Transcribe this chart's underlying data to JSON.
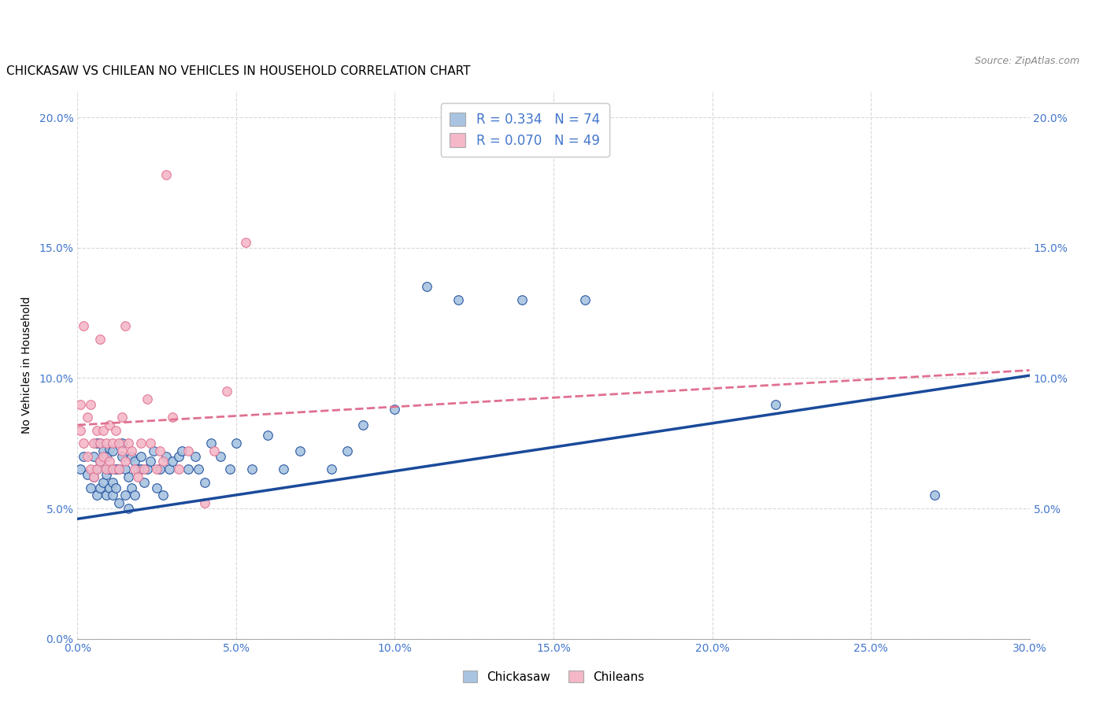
{
  "title": "CHICKASAW VS CHILEAN NO VEHICLES IN HOUSEHOLD CORRELATION CHART",
  "source": "Source: ZipAtlas.com",
  "ylabel": "No Vehicles in Household",
  "x_min": 0.0,
  "x_max": 0.3,
  "y_min": 0.0,
  "y_max": 0.21,
  "x_ticks": [
    0.0,
    0.05,
    0.1,
    0.15,
    0.2,
    0.25,
    0.3
  ],
  "x_tick_labels": [
    "0.0%",
    "",
    "",
    "",
    "",
    "",
    "30.0%"
  ],
  "y_ticks": [
    0.0,
    0.05,
    0.1,
    0.15,
    0.2
  ],
  "y_tick_labels_left": [
    "",
    "5.0%",
    "10.0%",
    "15.0%",
    "20.0%"
  ],
  "y_tick_labels_right": [
    "",
    "5.0%",
    "10.0%",
    "15.0%",
    "20.0%"
  ],
  "legend_r1": "R = 0.334",
  "legend_n1": "N = 74",
  "legend_r2": "R = 0.070",
  "legend_n2": "N = 49",
  "color_chickasaw": "#a8c4e0",
  "color_chilean": "#f4b8c8",
  "color_line1": "#1a4a9a",
  "color_line2": "#e07090",
  "title_fontsize": 11,
  "source_fontsize": 9,
  "tick_color": "#4477cc",
  "chickasaw_x": [
    0.001,
    0.002,
    0.003,
    0.004,
    0.005,
    0.005,
    0.006,
    0.006,
    0.006,
    0.007,
    0.007,
    0.007,
    0.008,
    0.008,
    0.009,
    0.009,
    0.009,
    0.01,
    0.01,
    0.01,
    0.011,
    0.011,
    0.011,
    0.012,
    0.012,
    0.013,
    0.013,
    0.014,
    0.014,
    0.015,
    0.015,
    0.016,
    0.016,
    0.017,
    0.017,
    0.018,
    0.018,
    0.019,
    0.02,
    0.02,
    0.021,
    0.022,
    0.023,
    0.024,
    0.025,
    0.026,
    0.027,
    0.028,
    0.029,
    0.03,
    0.032,
    0.033,
    0.035,
    0.037,
    0.038,
    0.04,
    0.042,
    0.045,
    0.048,
    0.05,
    0.055,
    0.06,
    0.065,
    0.07,
    0.08,
    0.085,
    0.09,
    0.1,
    0.11,
    0.12,
    0.14,
    0.16,
    0.22,
    0.27
  ],
  "chickasaw_y": [
    0.065,
    0.07,
    0.063,
    0.058,
    0.062,
    0.07,
    0.055,
    0.065,
    0.075,
    0.058,
    0.068,
    0.075,
    0.06,
    0.072,
    0.055,
    0.063,
    0.07,
    0.058,
    0.065,
    0.073,
    0.055,
    0.06,
    0.072,
    0.058,
    0.065,
    0.052,
    0.065,
    0.07,
    0.075,
    0.055,
    0.065,
    0.05,
    0.062,
    0.058,
    0.07,
    0.055,
    0.068,
    0.065,
    0.065,
    0.07,
    0.06,
    0.065,
    0.068,
    0.072,
    0.058,
    0.065,
    0.055,
    0.07,
    0.065,
    0.068,
    0.07,
    0.072,
    0.065,
    0.07,
    0.065,
    0.06,
    0.075,
    0.07,
    0.065,
    0.075,
    0.065,
    0.078,
    0.065,
    0.072,
    0.065,
    0.072,
    0.082,
    0.088,
    0.135,
    0.13,
    0.13,
    0.13,
    0.09,
    0.055
  ],
  "chilean_x": [
    0.001,
    0.001,
    0.002,
    0.002,
    0.003,
    0.003,
    0.004,
    0.004,
    0.005,
    0.005,
    0.006,
    0.006,
    0.007,
    0.007,
    0.007,
    0.008,
    0.008,
    0.009,
    0.009,
    0.01,
    0.01,
    0.011,
    0.011,
    0.012,
    0.013,
    0.013,
    0.014,
    0.014,
    0.015,
    0.015,
    0.016,
    0.017,
    0.018,
    0.019,
    0.02,
    0.021,
    0.022,
    0.023,
    0.025,
    0.026,
    0.027,
    0.028,
    0.03,
    0.032,
    0.035,
    0.04,
    0.043,
    0.047,
    0.053
  ],
  "chilean_y": [
    0.08,
    0.09,
    0.075,
    0.12,
    0.07,
    0.085,
    0.065,
    0.09,
    0.062,
    0.075,
    0.065,
    0.08,
    0.068,
    0.075,
    0.115,
    0.07,
    0.08,
    0.065,
    0.075,
    0.068,
    0.082,
    0.065,
    0.075,
    0.08,
    0.065,
    0.075,
    0.072,
    0.085,
    0.068,
    0.12,
    0.075,
    0.072,
    0.065,
    0.062,
    0.075,
    0.065,
    0.092,
    0.075,
    0.065,
    0.072,
    0.068,
    0.178,
    0.085,
    0.065,
    0.072,
    0.052,
    0.072,
    0.095,
    0.152
  ],
  "line1_x0": 0.0,
  "line1_y0": 0.046,
  "line1_x1": 0.3,
  "line1_y1": 0.101,
  "line2_x0": 0.0,
  "line2_y0": 0.082,
  "line2_x1": 0.3,
  "line2_y1": 0.103
}
